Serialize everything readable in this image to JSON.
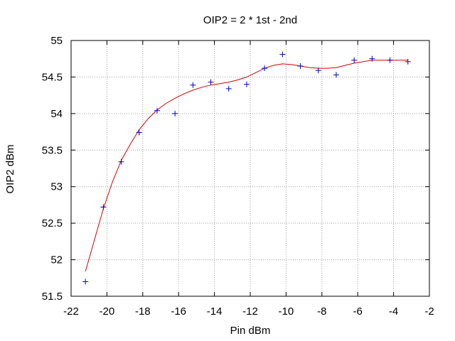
{
  "chart_data": {
    "type": "scatter",
    "title": "OIP2 = 2 * 1st - 2nd",
    "xlabel": "Pin dBm",
    "ylabel": "OIP2 dBm",
    "xlim": [
      -22,
      -2
    ],
    "ylim": [
      51.5,
      55
    ],
    "xticks": [
      -22,
      -20,
      -18,
      -16,
      -14,
      -12,
      -10,
      -8,
      -6,
      -4,
      -2
    ],
    "yticks": [
      51.5,
      52,
      52.5,
      53,
      53.5,
      54,
      54.5,
      55
    ],
    "xtick_labels": [
      "-22",
      "-20",
      "-18",
      "-16",
      "-14",
      "-12",
      "-10",
      "-8",
      "-6",
      "-4",
      "-2"
    ],
    "ytick_labels": [
      "51.5",
      "52",
      "52.5",
      "53",
      "53.5",
      "54",
      "54.5",
      "55"
    ],
    "grid": true,
    "series": [
      {
        "kind": "points",
        "marker": "+",
        "color": "#0000c8",
        "x": [
          -21.2,
          -20.2,
          -19.2,
          -18.2,
          -17.2,
          -16.2,
          -15.2,
          -14.2,
          -13.2,
          -12.2,
          -11.2,
          -10.2,
          -9.2,
          -8.2,
          -7.2,
          -6.2,
          -5.2,
          -4.2,
          -3.2
        ],
        "y": [
          51.7,
          52.72,
          53.34,
          53.74,
          54.04,
          54.0,
          54.39,
          54.43,
          54.34,
          54.4,
          54.62,
          54.81,
          54.65,
          54.59,
          54.53,
          54.73,
          54.75,
          54.73,
          54.71
        ]
      },
      {
        "kind": "line",
        "color": "#d40000",
        "x": [
          -21.2,
          -20.7,
          -20.2,
          -19.7,
          -19.2,
          -18.7,
          -18.2,
          -17.7,
          -17.2,
          -16.7,
          -16.2,
          -15.7,
          -15.2,
          -14.7,
          -14.2,
          -13.7,
          -13.2,
          -12.7,
          -12.2,
          -11.7,
          -11.2,
          -10.7,
          -10.2,
          -9.7,
          -9.2,
          -8.7,
          -8.2,
          -7.7,
          -7.2,
          -6.7,
          -6.2,
          -5.7,
          -5.2,
          -4.7,
          -4.2,
          -3.7,
          -3.2
        ],
        "y": [
          51.84,
          52.27,
          52.7,
          53.06,
          53.36,
          53.58,
          53.78,
          53.93,
          54.05,
          54.14,
          54.21,
          54.27,
          54.32,
          54.36,
          54.39,
          54.41,
          54.43,
          54.46,
          54.5,
          54.56,
          54.62,
          54.66,
          54.68,
          54.67,
          54.65,
          54.63,
          54.62,
          54.62,
          54.63,
          54.66,
          54.69,
          54.71,
          54.73,
          54.73,
          54.73,
          54.73,
          54.73
        ]
      }
    ]
  }
}
